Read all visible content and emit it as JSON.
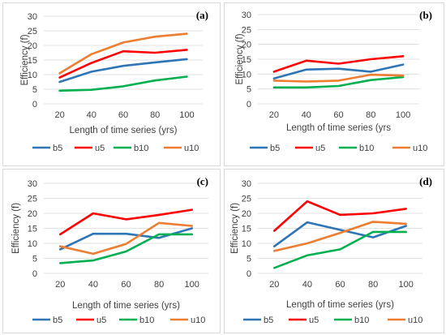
{
  "colors": {
    "b5": "#2e75b6",
    "u5": "#ff0000",
    "b10": "#00b050",
    "u10": "#ed7d31"
  },
  "chart_data": [
    {
      "type": "line",
      "panel_label": "(a)",
      "x": [
        20,
        40,
        60,
        80,
        100
      ],
      "xlabel": "Length of time series (yrs)",
      "ylabel": "Efficiency (f)",
      "ylim": [
        0,
        30
      ],
      "yticks": [
        0,
        5,
        10,
        15,
        20,
        25,
        30
      ],
      "grid": true,
      "legend_position": "bottom",
      "series": [
        {
          "name": "b5",
          "values": [
            7.5,
            11,
            13,
            14.2,
            15.3
          ]
        },
        {
          "name": "u5",
          "values": [
            9,
            14,
            18,
            17.5,
            18.5
          ]
        },
        {
          "name": "b10",
          "values": [
            4.5,
            4.8,
            6,
            8,
            9.3
          ]
        },
        {
          "name": "u10",
          "values": [
            10.5,
            17,
            21,
            23,
            24
          ]
        }
      ]
    },
    {
      "type": "line",
      "panel_label": "(b)",
      "x": [
        20,
        40,
        60,
        80,
        100
      ],
      "xlabel": "Length of time series (yrs",
      "ylabel": "Efficiency (f)",
      "ylim": [
        0,
        30
      ],
      "yticks": [
        0,
        5,
        10,
        15,
        20,
        25,
        30
      ],
      "grid": true,
      "legend_position": "bottom",
      "series": [
        {
          "name": "b5",
          "values": [
            8.5,
            11.5,
            11.8,
            10.8,
            13.2
          ]
        },
        {
          "name": "u5",
          "values": [
            10.8,
            14.5,
            13.5,
            15,
            16
          ]
        },
        {
          "name": "b10",
          "values": [
            5.5,
            5.5,
            6,
            8,
            9
          ]
        },
        {
          "name": "u10",
          "values": [
            7.8,
            7.5,
            7.8,
            9.8,
            9.5
          ]
        }
      ]
    },
    {
      "type": "line",
      "panel_label": "(c)",
      "x": [
        20,
        40,
        60,
        80,
        100
      ],
      "xlabel": "Length of time series (yrs)",
      "ylabel": "Efficiency (f)",
      "ylim": [
        0,
        30
      ],
      "yticks": [
        0,
        5,
        10,
        15,
        20,
        25,
        30
      ],
      "grid": true,
      "legend_position": "bottom",
      "series": [
        {
          "name": "b5",
          "values": [
            8,
            13.2,
            13.2,
            11.8,
            15
          ]
        },
        {
          "name": "u5",
          "values": [
            13,
            20,
            18,
            19.5,
            21.2
          ]
        },
        {
          "name": "b10",
          "values": [
            3.4,
            4.3,
            7.3,
            13,
            13
          ]
        },
        {
          "name": "u10",
          "values": [
            9,
            6.5,
            9.8,
            16.8,
            15.8
          ]
        }
      ]
    },
    {
      "type": "line",
      "panel_label": "(d)",
      "x": [
        20,
        40,
        60,
        80,
        100
      ],
      "xlabel": "Length of time series (yrs)",
      "ylabel": "Efficiency (f)",
      "ylim": [
        0,
        30
      ],
      "yticks": [
        0,
        5,
        10,
        15,
        20,
        25,
        30
      ],
      "grid": true,
      "legend_position": "bottom",
      "series": [
        {
          "name": "b5",
          "values": [
            9,
            17,
            14.5,
            12,
            15.8
          ]
        },
        {
          "name": "u5",
          "values": [
            14.2,
            24,
            19.5,
            20,
            21.5
          ]
        },
        {
          "name": "b10",
          "values": [
            1.8,
            6,
            8,
            13.8,
            13.8
          ]
        },
        {
          "name": "u10",
          "values": [
            7.5,
            10,
            13.5,
            17.2,
            16.5
          ]
        }
      ]
    }
  ]
}
